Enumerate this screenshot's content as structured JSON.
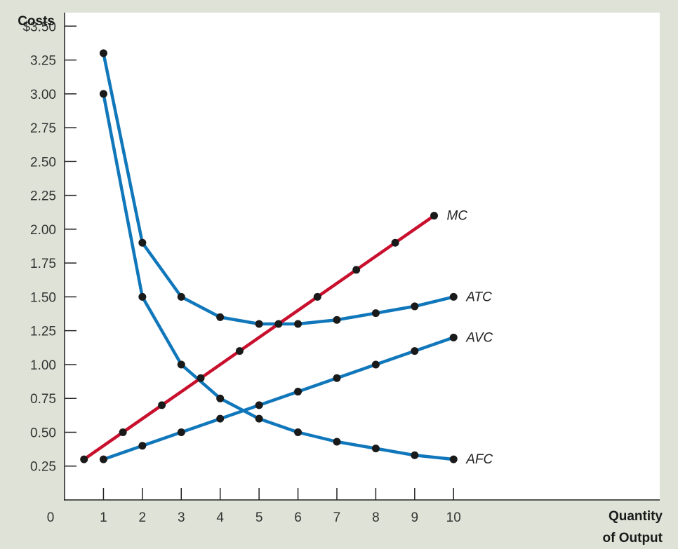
{
  "chart_data": {
    "type": "line",
    "ylabel": "Costs",
    "xlabel_lines": [
      "Quantity",
      "of Output"
    ],
    "origin_label": "0",
    "xlim": [
      0,
      15.3
    ],
    "ylim": [
      0,
      3.6
    ],
    "x_ticks": [
      1,
      2,
      3,
      4,
      5,
      6,
      7,
      8,
      9,
      10
    ],
    "x_tick_labels": [
      "1",
      "2",
      "3",
      "4",
      "5",
      "6",
      "7",
      "8",
      "9",
      "10"
    ],
    "y_ticks": [
      0.25,
      0.5,
      0.75,
      1.0,
      1.25,
      1.5,
      1.75,
      2.0,
      2.25,
      2.5,
      2.75,
      3.0,
      3.25,
      3.5
    ],
    "y_tick_labels": [
      "0.25",
      "0.50",
      "0.75",
      "1.00",
      "1.25",
      "1.50",
      "1.75",
      "2.00",
      "2.25",
      "2.50",
      "2.75",
      "3.00",
      "3.25",
      "$3.50"
    ],
    "grid": false,
    "series": [
      {
        "name": "MC",
        "color": "#c8102e",
        "x": [
          0.5,
          1.5,
          2.5,
          3.5,
          4.5,
          5.5,
          6.5,
          7.5,
          8.5,
          9.5
        ],
        "values": [
          0.3,
          0.5,
          0.7,
          0.9,
          1.1,
          1.3,
          1.5,
          1.7,
          1.9,
          2.1
        ]
      },
      {
        "name": "ATC",
        "color": "#1177bb",
        "x": [
          1,
          2,
          3,
          4,
          5,
          6,
          7,
          8,
          9,
          10
        ],
        "values": [
          3.3,
          1.9,
          1.5,
          1.35,
          1.3,
          1.3,
          1.33,
          1.38,
          1.43,
          1.5
        ]
      },
      {
        "name": "AVC",
        "color": "#1177bb",
        "x": [
          1,
          2,
          3,
          4,
          5,
          6,
          7,
          8,
          9,
          10
        ],
        "values": [
          0.3,
          0.4,
          0.5,
          0.6,
          0.7,
          0.8,
          0.9,
          1.0,
          1.1,
          1.2
        ]
      },
      {
        "name": "AFC",
        "color": "#1177bb",
        "x": [
          1,
          2,
          3,
          4,
          5,
          6,
          7,
          8,
          9,
          10
        ],
        "values": [
          3.0,
          1.5,
          1.0,
          0.75,
          0.6,
          0.5,
          0.43,
          0.38,
          0.33,
          0.3
        ]
      }
    ]
  }
}
